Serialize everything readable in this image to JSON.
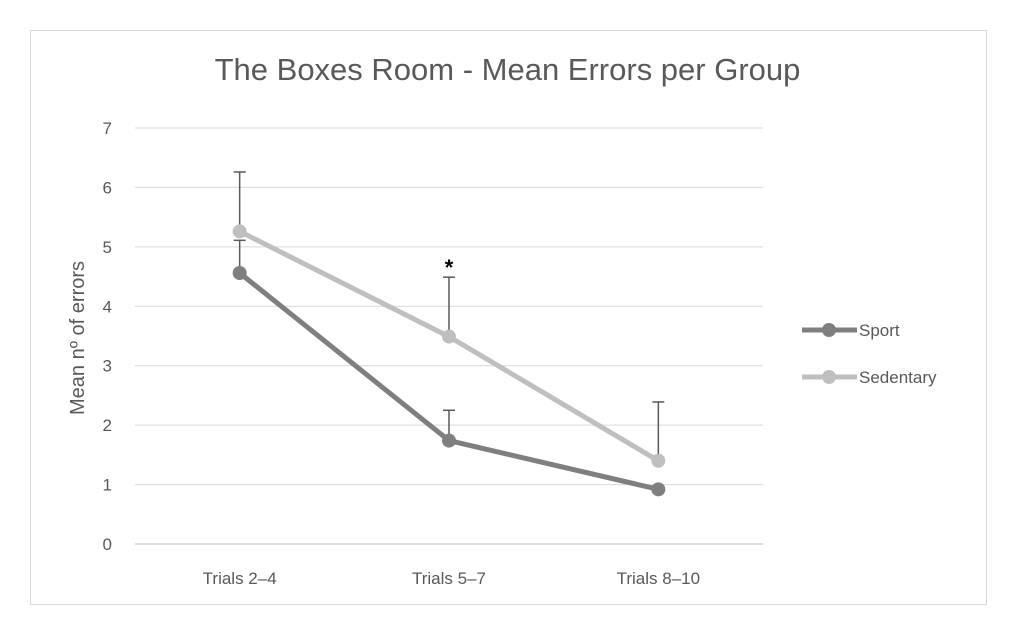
{
  "chart_data": {
    "type": "line",
    "title": "The Boxes Room - Mean Errors per Group",
    "xlabel": "",
    "ylabel": "Mean nº of errors",
    "categories": [
      "Trials 2–4",
      "Trials 5–7",
      "Trials 8–10"
    ],
    "ylim": [
      0,
      7
    ],
    "yticks": [
      0,
      1,
      2,
      3,
      4,
      5,
      6,
      7
    ],
    "grid": true,
    "legend_position": "right",
    "series": [
      {
        "name": "Sport",
        "values": [
          4.56,
          1.74,
          0.92
        ],
        "error_plus": [
          0.55,
          0.51,
          0.0
        ],
        "color": "#7f7f7f"
      },
      {
        "name": "Sedentary",
        "values": [
          5.26,
          3.49,
          1.4
        ],
        "error_plus": [
          1.0,
          1.0,
          0.99
        ],
        "color": "#bfbfbf"
      }
    ],
    "annotations": [
      {
        "category": "Trials 5–7",
        "text": "*"
      }
    ]
  }
}
